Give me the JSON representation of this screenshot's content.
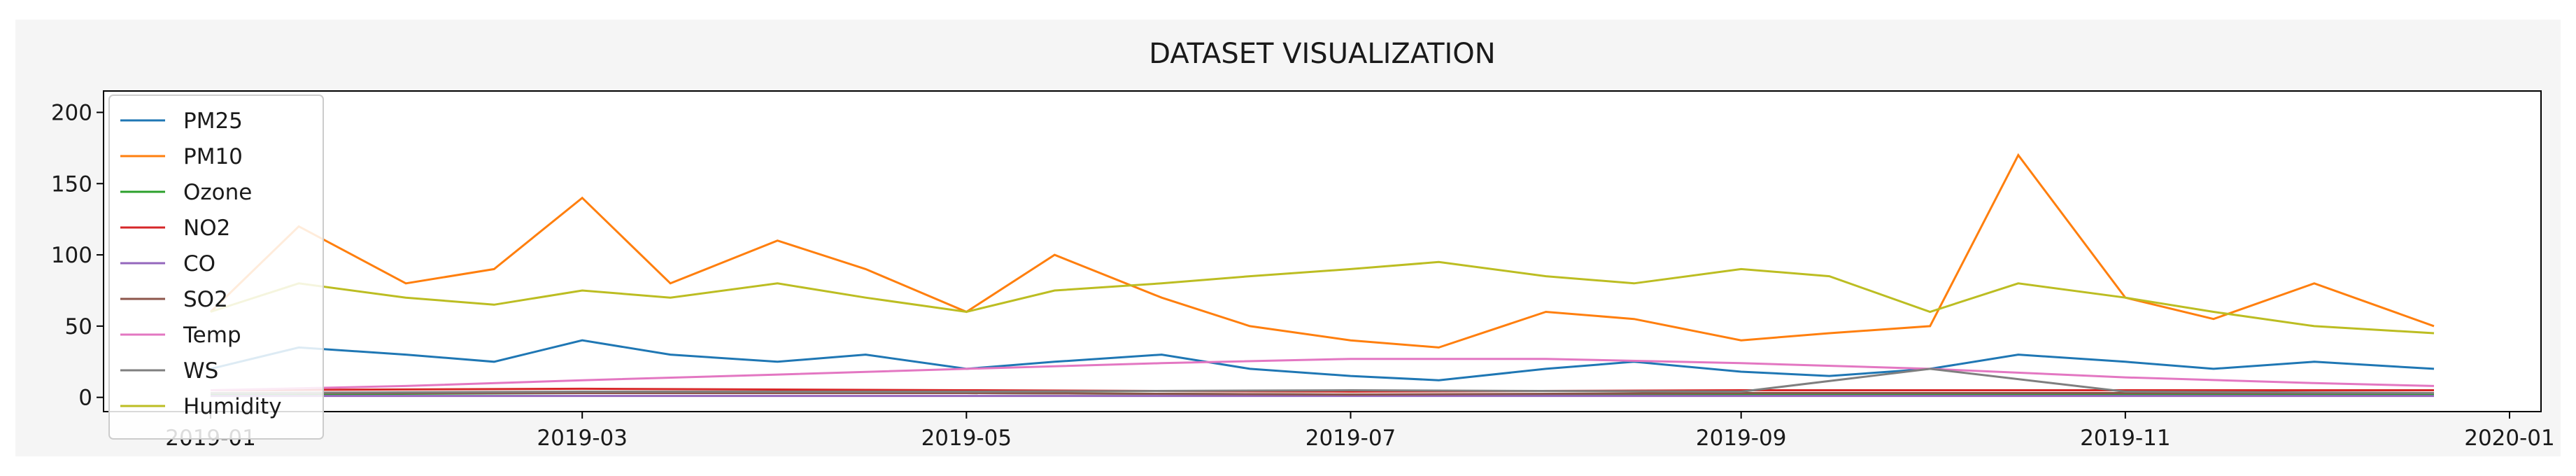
{
  "chart_data": {
    "type": "line",
    "title": "DATASET VISUALIZATION",
    "xlabel": "",
    "ylabel": "",
    "x_range": [
      "2018-12-15",
      "2020-01-06"
    ],
    "ylim": [
      -10,
      215
    ],
    "y_ticks": [
      0,
      50,
      100,
      150,
      200
    ],
    "x_ticks": [
      "2019-01",
      "2019-03",
      "2019-05",
      "2019-07",
      "2019-09",
      "2019-11",
      "2020-01"
    ],
    "grid": false,
    "legend_position": "upper-left",
    "series": [
      {
        "name": "PM25",
        "color": "#1f77b4",
        "x": [
          "2019-01-01",
          "2019-01-15",
          "2019-02-01",
          "2019-02-15",
          "2019-03-01",
          "2019-03-15",
          "2019-04-01",
          "2019-04-15",
          "2019-05-01",
          "2019-05-15",
          "2019-06-01",
          "2019-06-15",
          "2019-07-01",
          "2019-07-15",
          "2019-08-01",
          "2019-08-15",
          "2019-09-01",
          "2019-09-15",
          "2019-10-01",
          "2019-10-15",
          "2019-11-01",
          "2019-11-15",
          "2019-12-01",
          "2019-12-20"
        ],
        "values": [
          20,
          35,
          30,
          25,
          40,
          30,
          25,
          30,
          20,
          25,
          30,
          20,
          15,
          12,
          20,
          25,
          18,
          15,
          20,
          30,
          25,
          20,
          25,
          20
        ]
      },
      {
        "name": "PM10",
        "color": "#ff7f0e",
        "x": [
          "2019-01-01",
          "2019-01-15",
          "2019-02-01",
          "2019-02-15",
          "2019-03-01",
          "2019-03-15",
          "2019-04-01",
          "2019-04-15",
          "2019-05-01",
          "2019-05-15",
          "2019-06-01",
          "2019-06-15",
          "2019-07-01",
          "2019-07-15",
          "2019-08-01",
          "2019-08-15",
          "2019-09-01",
          "2019-09-15",
          "2019-10-01",
          "2019-10-15",
          "2019-11-01",
          "2019-11-15",
          "2019-12-01",
          "2019-12-20"
        ],
        "values": [
          60,
          120,
          80,
          90,
          140,
          80,
          110,
          90,
          60,
          100,
          70,
          50,
          40,
          35,
          60,
          55,
          40,
          45,
          50,
          170,
          70,
          55,
          80,
          50
        ]
      },
      {
        "name": "Ozone",
        "color": "#2ca02c",
        "x": [
          "2019-01-01",
          "2019-03-01",
          "2019-05-01",
          "2019-07-01",
          "2019-09-01",
          "2019-11-01",
          "2019-12-20"
        ],
        "values": [
          2,
          3,
          3,
          2,
          2,
          2,
          2
        ]
      },
      {
        "name": "NO2",
        "color": "#d62728",
        "x": [
          "2019-01-01",
          "2019-03-01",
          "2019-05-01",
          "2019-07-01",
          "2019-09-01",
          "2019-11-01",
          "2019-12-20"
        ],
        "values": [
          5,
          6,
          5,
          4,
          5,
          5,
          5
        ]
      },
      {
        "name": "CO",
        "color": "#9467bd",
        "x": [
          "2019-01-01",
          "2019-03-01",
          "2019-05-01",
          "2019-07-01",
          "2019-09-01",
          "2019-11-01",
          "2019-12-20"
        ],
        "values": [
          1,
          1,
          1,
          1,
          1,
          1,
          1
        ]
      },
      {
        "name": "SO2",
        "color": "#8c564b",
        "x": [
          "2019-01-01",
          "2019-03-01",
          "2019-05-01",
          "2019-07-01",
          "2019-09-01",
          "2019-11-01",
          "2019-12-20"
        ],
        "values": [
          3,
          3,
          3,
          2,
          3,
          3,
          3
        ]
      },
      {
        "name": "Temp",
        "color": "#e377c2",
        "x": [
          "2019-01-01",
          "2019-02-01",
          "2019-03-01",
          "2019-04-01",
          "2019-05-01",
          "2019-06-01",
          "2019-07-01",
          "2019-08-01",
          "2019-09-01",
          "2019-10-01",
          "2019-11-01",
          "2019-12-01",
          "2019-12-20"
        ],
        "values": [
          5,
          8,
          12,
          16,
          20,
          24,
          27,
          27,
          24,
          20,
          14,
          10,
          8
        ]
      },
      {
        "name": "WS",
        "color": "#7f7f7f",
        "x": [
          "2019-01-01",
          "2019-03-01",
          "2019-05-01",
          "2019-07-01",
          "2019-09-01",
          "2019-10-01",
          "2019-11-01",
          "2019-12-20"
        ],
        "values": [
          3,
          4,
          4,
          5,
          4,
          20,
          4,
          3
        ]
      },
      {
        "name": "Humidity",
        "color": "#bcbd22",
        "x": [
          "2019-01-01",
          "2019-01-15",
          "2019-02-01",
          "2019-02-15",
          "2019-03-01",
          "2019-03-15",
          "2019-04-01",
          "2019-04-15",
          "2019-05-01",
          "2019-05-15",
          "2019-06-01",
          "2019-06-15",
          "2019-07-01",
          "2019-07-15",
          "2019-08-01",
          "2019-08-15",
          "2019-09-01",
          "2019-09-15",
          "2019-10-01",
          "2019-10-15",
          "2019-11-01",
          "2019-11-15",
          "2019-12-01",
          "2019-12-20"
        ],
        "values": [
          60,
          80,
          70,
          65,
          75,
          70,
          80,
          70,
          60,
          75,
          80,
          85,
          90,
          95,
          85,
          80,
          90,
          85,
          60,
          80,
          70,
          60,
          50,
          45
        ]
      }
    ]
  }
}
